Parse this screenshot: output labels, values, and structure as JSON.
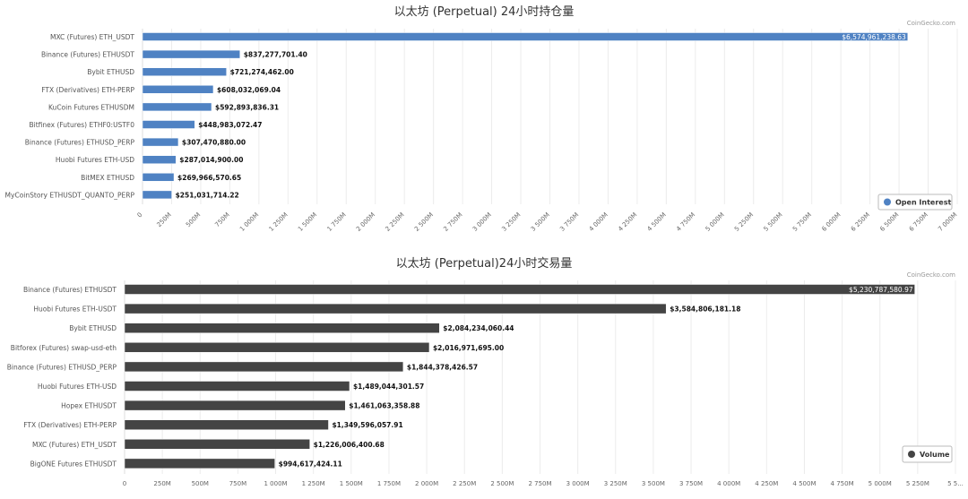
{
  "chart_data": [
    {
      "type": "bar",
      "orientation": "horizontal",
      "title": "以太坊 (Perpetual) 24小时持仓量",
      "credit": "CoinGecko.com",
      "color": "#4f82c3",
      "xlim": [
        0,
        7000000000
      ],
      "grid": true,
      "legend_position": "bottom-right",
      "tick_labels": [
        "0",
        "250M",
        "500M",
        "750M",
        "1 000M",
        "1 250M",
        "1 500M",
        "1 750M",
        "2 000M",
        "2 250M",
        "2 500M",
        "2 750M",
        "3 000M",
        "3 250M",
        "3 500M",
        "3 750M",
        "4 000M",
        "4 250M",
        "4 500M",
        "4 750M",
        "5 000M",
        "5 250M",
        "5 500M",
        "5 750M",
        "6 000M",
        "6 250M",
        "6 500M",
        "6 750M",
        "7 000M"
      ],
      "tick_labels_rotated": true,
      "categories": [
        "MXC (Futures) ETH_USDT",
        "Binance (Futures) ETHUSDT",
        "Bybit ETHUSD",
        "FTX (Derivatives) ETH-PERP",
        "KuCoin Futures ETHUSDM",
        "Bitfinex (Futures) ETHF0:USTF0",
        "Binance (Futures) ETHUSD_PERP",
        "Huobi Futures ETH-USD",
        "BitMEX ETHUSD",
        "MyCoinStory ETHUSDT_QUANTO_PERP"
      ],
      "series": [
        {
          "name": "Open Interest",
          "values": [
            6574961238.63,
            837277701.4,
            721274462.0,
            608032069.04,
            592893836.31,
            448983072.47,
            307470880.0,
            287014900.0,
            269966570.65,
            251031714.22
          ],
          "labels": [
            "$6,574,961,238.63",
            "$837,277,701.40",
            "$721,274,462.00",
            "$608,032,069.04",
            "$592,893,836.31",
            "$448,983,072.47",
            "$307,470,880.00",
            "$287,014,900.00",
            "$269,966,570.65",
            "$251,031,714.22"
          ]
        }
      ]
    },
    {
      "type": "bar",
      "orientation": "horizontal",
      "title": "以太坊 (Perpetual)24小时交易量",
      "credit": "CoinGecko.com",
      "color": "#444444",
      "xlim": [
        0,
        5500000000
      ],
      "grid": true,
      "legend_position": "bottom-right",
      "tick_labels": [
        "0",
        "250M",
        "500M",
        "750M",
        "1 000M",
        "1 250M",
        "1 500M",
        "1 750M",
        "2 000M",
        "2 250M",
        "2 500M",
        "2 750M",
        "3 000M",
        "3 250M",
        "3 500M",
        "3 750M",
        "4 000M",
        "4 250M",
        "4 500M",
        "4 750M",
        "5 000M",
        "5 250M",
        "5 5..."
      ],
      "tick_labels_rotated": false,
      "categories": [
        "Binance (Futures) ETHUSDT",
        "Huobi Futures ETH-USDT",
        "Bybit ETHUSD",
        "Bitforex (Futures) swap-usd-eth",
        "Binance (Futures) ETHUSD_PERP",
        "Huobi Futures ETH-USD",
        "Hopex ETHUSDT",
        "FTX (Derivatives) ETH-PERP",
        "MXC (Futures) ETH_USDT",
        "BigONE Futures ETHUSDT"
      ],
      "series": [
        {
          "name": "Volume",
          "values": [
            5230787580.97,
            3584806181.18,
            2084234060.44,
            2016971695.0,
            1844378426.57,
            1489044301.57,
            1461063358.88,
            1349596057.91,
            1226006400.68,
            994617424.11
          ],
          "labels": [
            "$5,230,787,580.97",
            "$3,584,806,181.18",
            "$2,084,234,060.44",
            "$2,016,971,695.00",
            "$1,844,378,426.57",
            "$1,489,044,301.57",
            "$1,461,063,358.88",
            "$1,349,596,057.91",
            "$1,226,006,400.68",
            "$994,617,424.11"
          ]
        }
      ]
    }
  ]
}
